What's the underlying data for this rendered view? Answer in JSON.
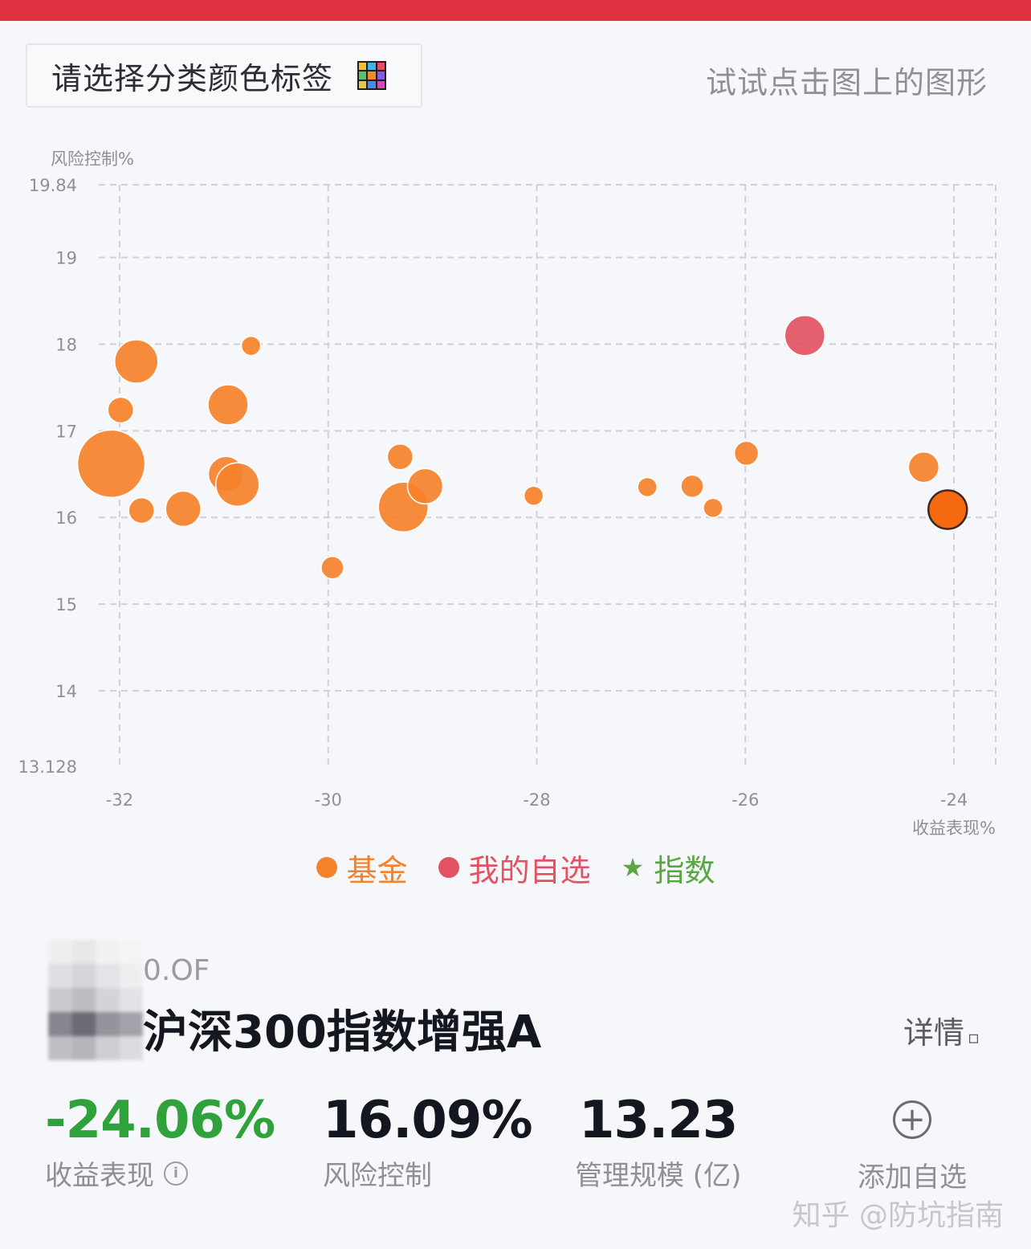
{
  "header": {
    "category_button_label": "请选择分类颜色标签",
    "category_icon": "color-grid-icon",
    "hint": "试试点击图上的图形"
  },
  "chart_data": {
    "type": "scatter",
    "title": "",
    "xlabel": "收益表现%",
    "ylabel": "风险控制%",
    "xlim": [
      -32.2,
      -23.6
    ],
    "ylim": [
      13.128,
      19.84
    ],
    "x_ticks": [
      -32,
      -30,
      -28,
      -26,
      -24
    ],
    "x_tick_labels": [
      "-32",
      "-30",
      "-28",
      "-26",
      "-24"
    ],
    "y_ticks": [
      13.128,
      14,
      15,
      16,
      17,
      18,
      19,
      19.84
    ],
    "y_tick_labels": [
      "13.128",
      "14",
      "15",
      "16",
      "17",
      "18",
      "19",
      "19.84"
    ],
    "grid": true,
    "series": [
      {
        "name": "基金",
        "color": "#f5812a",
        "points": [
          {
            "x": -32.08,
            "y": 16.62,
            "size": 42
          },
          {
            "x": -31.84,
            "y": 17.8,
            "size": 27
          },
          {
            "x": -31.99,
            "y": 17.24,
            "size": 16
          },
          {
            "x": -31.79,
            "y": 16.08,
            "size": 16
          },
          {
            "x": -31.39,
            "y": 16.1,
            "size": 22
          },
          {
            "x": -30.96,
            "y": 17.3,
            "size": 25
          },
          {
            "x": -30.98,
            "y": 16.5,
            "size": 22
          },
          {
            "x": -30.87,
            "y": 16.38,
            "size": 27
          },
          {
            "x": -30.74,
            "y": 17.98,
            "size": 12
          },
          {
            "x": -29.96,
            "y": 15.42,
            "size": 14
          },
          {
            "x": -29.31,
            "y": 16.7,
            "size": 16
          },
          {
            "x": -29.28,
            "y": 16.12,
            "size": 31
          },
          {
            "x": -29.07,
            "y": 16.36,
            "size": 22
          },
          {
            "x": -28.03,
            "y": 16.25,
            "size": 12
          },
          {
            "x": -26.94,
            "y": 16.35,
            "size": 12
          },
          {
            "x": -26.51,
            "y": 16.36,
            "size": 14
          },
          {
            "x": -26.31,
            "y": 16.11,
            "size": 12
          },
          {
            "x": -25.99,
            "y": 16.74,
            "size": 15
          },
          {
            "x": -24.29,
            "y": 16.58,
            "size": 19
          },
          {
            "x": -24.06,
            "y": 16.09,
            "size": 24
          }
        ]
      },
      {
        "name": "我的自选",
        "color": "#e35262",
        "points": [
          {
            "x": -25.43,
            "y": 18.1,
            "size": 25
          }
        ]
      },
      {
        "name": "指数",
        "color": "#5aa642",
        "points": []
      }
    ],
    "legend_position": "bottom"
  },
  "legend": [
    {
      "label": "基金",
      "color": "#f5812a",
      "marker": "circle"
    },
    {
      "label": "我的自选",
      "color": "#e35262",
      "marker": "circle"
    },
    {
      "label": "指数",
      "color": "#5aa642",
      "marker": "star"
    }
  ],
  "fund": {
    "code_suffix": "0.OF",
    "name": "沪深300指数增强A",
    "details_label": "详情",
    "stats": [
      {
        "value": "-24.06%",
        "label": "收益表现",
        "color": "#2fa23b"
      },
      {
        "value": "16.09%",
        "label": "风险控制",
        "color": "#141620"
      },
      {
        "value": "13.23",
        "label": "管理规模 (亿)",
        "color": "#141620"
      }
    ],
    "add_label": "添加自选"
  },
  "watermark": "知乎 @防坑指南"
}
